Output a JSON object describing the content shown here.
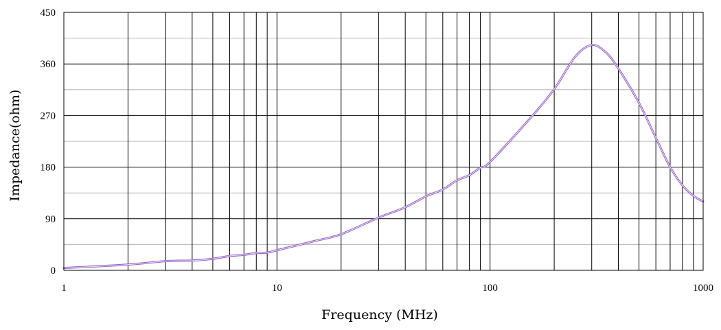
{
  "chart_data": {
    "type": "line",
    "title": "",
    "xlabel": "Frequency (MHz)",
    "ylabel": "Impedance(ohm)",
    "x_scale": "log",
    "xlim": [
      1,
      1000
    ],
    "ylim": [
      0,
      450
    ],
    "grid": true,
    "x_ticks": [
      1,
      10,
      100,
      1000
    ],
    "x_tick_labels": [
      "1",
      "10",
      "100",
      "1000"
    ],
    "y_ticks": [
      0,
      90,
      180,
      270,
      360,
      450
    ],
    "y_tick_labels": [
      "0",
      "90",
      "180",
      "270",
      "360",
      "450"
    ],
    "series": [
      {
        "color": "#9966cc",
        "x": [
          1,
          2,
          3,
          4,
          5,
          6,
          7,
          8,
          9,
          10,
          15,
          20,
          30,
          40,
          50,
          60,
          70,
          80,
          90,
          100,
          150,
          200,
          250,
          300,
          350,
          400,
          500,
          600,
          700,
          800,
          900,
          1000
        ],
        "y": [
          4,
          10,
          16,
          17,
          20,
          25,
          27,
          30,
          31,
          35,
          51,
          63,
          92,
          110,
          129,
          141,
          157,
          166,
          179,
          189,
          260,
          316,
          372,
          393,
          380,
          352,
          292,
          231,
          180,
          148,
          130,
          120
        ]
      }
    ]
  }
}
